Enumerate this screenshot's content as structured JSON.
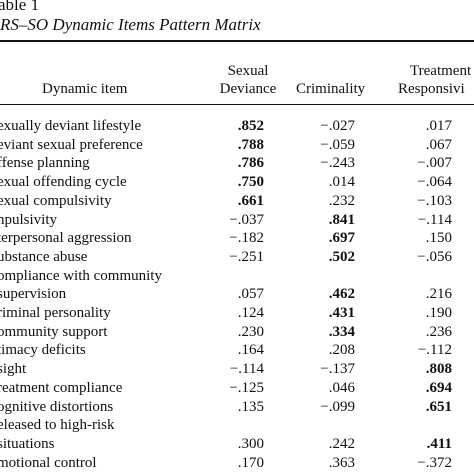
{
  "header": {
    "number": "able 1",
    "title": "RS–SO Dynamic Items Pattern Matrix"
  },
  "table": {
    "columns": [
      "Dynamic item",
      [
        "Sexual",
        "Deviance"
      ],
      "Criminality",
      [
        "Treatment",
        "Responsivi"
      ]
    ],
    "rows": [
      {
        "item": [
          "exually deviant lifestyle"
        ],
        "values": [
          ".852",
          "−.027",
          ".017"
        ],
        "bold": 0
      },
      {
        "item": [
          "eviant sexual preference"
        ],
        "values": [
          ".788",
          "−.059",
          ".067"
        ],
        "bold": 0
      },
      {
        "item": [
          "ffense planning"
        ],
        "values": [
          ".786",
          "−.243",
          "−.007"
        ],
        "bold": 0
      },
      {
        "item": [
          "exual offending cycle"
        ],
        "values": [
          ".750",
          ".014",
          "−.064"
        ],
        "bold": 0
      },
      {
        "item": [
          "exual compulsivity"
        ],
        "values": [
          ".661",
          ".232",
          "−.103"
        ],
        "bold": 0
      },
      {
        "item": [
          "npulsivity"
        ],
        "values": [
          "−.037",
          ".841",
          "−.114"
        ],
        "bold": 1
      },
      {
        "item": [
          "terpersonal aggression"
        ],
        "values": [
          "−.182",
          ".697",
          ".150"
        ],
        "bold": 1
      },
      {
        "item": [
          "ubstance abuse"
        ],
        "values": [
          "−.251",
          ".502",
          "−.056"
        ],
        "bold": 1
      },
      {
        "item": [
          "ompliance with community",
          " supervision"
        ],
        "values": [
          ".057",
          ".462",
          ".216"
        ],
        "bold": 1
      },
      {
        "item": [
          "riminal personality"
        ],
        "values": [
          ".124",
          ".431",
          ".190"
        ],
        "bold": 1
      },
      {
        "item": [
          "ommunity support"
        ],
        "values": [
          ".230",
          ".334",
          ".236"
        ],
        "bold": 1
      },
      {
        "item": [
          "timacy deficits"
        ],
        "values": [
          ".164",
          ".208",
          "−.112"
        ],
        "bold": null
      },
      {
        "item": [
          "sight"
        ],
        "values": [
          "−.114",
          "−.137",
          ".808"
        ],
        "bold": 2
      },
      {
        "item": [
          "reatment compliance"
        ],
        "values": [
          "−.125",
          ".046",
          ".694"
        ],
        "bold": 2
      },
      {
        "item": [
          "ognitive distortions"
        ],
        "values": [
          ".135",
          "−.099",
          ".651"
        ],
        "bold": 2
      },
      {
        "item": [
          "eleased to high-risk",
          " situations"
        ],
        "values": [
          ".300",
          ".242",
          ".411"
        ],
        "bold": 2
      },
      {
        "item": [
          "motional control"
        ],
        "values": [
          ".170",
          ".363",
          "−.372"
        ],
        "bold": null
      }
    ]
  }
}
